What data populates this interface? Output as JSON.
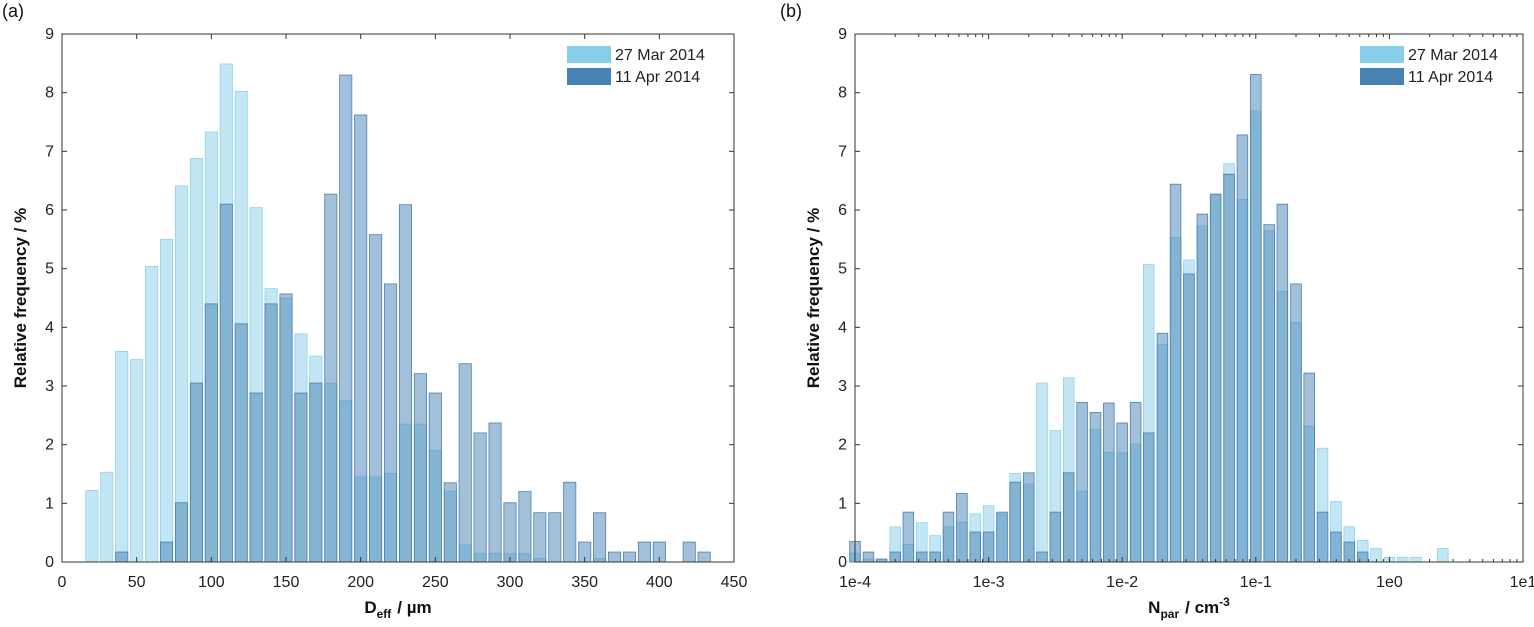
{
  "chart_data": [
    {
      "type": "bar",
      "panel_label": "(a)",
      "xlabel": "D",
      "xlabel_sub": "eff",
      "xlabel_unit": "/ µm",
      "ylabel": "Relative frequency  / %",
      "xlim": [
        0,
        450
      ],
      "ylim": [
        0,
        9
      ],
      "x_ticks": [
        "0",
        "50",
        "100",
        "150",
        "200",
        "250",
        "300",
        "350",
        "400",
        "450"
      ],
      "y_ticks": [
        "0",
        "1",
        "2",
        "3",
        "4",
        "5",
        "6",
        "7",
        "8",
        "9"
      ],
      "bin_width": 10,
      "legend_position": "top-right",
      "series": [
        {
          "name": "27 Mar 2014",
          "color": "#87ceeb",
          "x": [
            20,
            30,
            40,
            50,
            60,
            70,
            80,
            90,
            100,
            110,
            120,
            130,
            140,
            150,
            160,
            170,
            180,
            190,
            200,
            210,
            220,
            230,
            240,
            250,
            260,
            270,
            280,
            290,
            300,
            310,
            320,
            330,
            340,
            350,
            360,
            370,
            380,
            390,
            400,
            410,
            420,
            430
          ],
          "values": [
            1.22,
            1.53,
            3.59,
            3.45,
            5.04,
            5.5,
            6.41,
            6.88,
            7.33,
            8.49,
            8.02,
            6.04,
            4.66,
            4.5,
            3.89,
            3.51,
            3.05,
            2.75,
            1.45,
            1.45,
            1.51,
            2.35,
            2.35,
            1.9,
            1.21,
            0.29,
            0.14,
            0.15,
            0.14,
            0.14,
            0.06,
            0,
            0,
            0,
            0.06,
            0,
            0,
            0,
            0,
            0,
            0,
            0
          ]
        },
        {
          "name": "11 Apr 2014",
          "color": "#4682b4",
          "x": [
            20,
            30,
            40,
            50,
            60,
            70,
            80,
            90,
            100,
            110,
            120,
            130,
            140,
            150,
            160,
            170,
            180,
            190,
            200,
            210,
            220,
            230,
            240,
            250,
            260,
            270,
            280,
            290,
            300,
            310,
            320,
            330,
            340,
            350,
            360,
            370,
            380,
            390,
            400,
            410,
            420,
            430
          ],
          "values": [
            0,
            0,
            0.17,
            0,
            0,
            0.34,
            1.01,
            3.05,
            4.4,
            6.1,
            4.06,
            2.88,
            4.4,
            4.57,
            2.88,
            3.05,
            6.27,
            8.3,
            7.62,
            5.58,
            4.74,
            6.09,
            3.21,
            2.88,
            1.35,
            3.38,
            2.2,
            2.37,
            1.01,
            1.2,
            0.84,
            0.84,
            1.36,
            0.34,
            0.84,
            0.17,
            0.17,
            0.34,
            0.34,
            0,
            0.34,
            0.17
          ]
        }
      ]
    },
    {
      "type": "bar",
      "panel_label": "(b)",
      "xlabel": "N",
      "xlabel_sub": "par",
      "xlabel_unit": "/ cm",
      "xlabel_sup": "-3",
      "ylabel": "Relative frequency  / %",
      "xscale": "log",
      "xlim": [
        0.0001,
        10
      ],
      "ylim": [
        0,
        9
      ],
      "x_ticks": [
        "1e-4",
        "1e-3",
        "1e-2",
        "1e-1",
        "1e0",
        "1e1"
      ],
      "y_ticks": [
        "0",
        "1",
        "2",
        "3",
        "4",
        "5",
        "6",
        "7",
        "8",
        "9"
      ],
      "bins_per_decade": 10,
      "legend_position": "top-right",
      "series": [
        {
          "name": "27 Mar 2014",
          "color": "#87ceeb",
          "x": [
            0.0001,
            0.000126,
            0.000158,
            0.0002,
            0.000251,
            0.000316,
            0.000398,
            0.000501,
            0.000631,
            0.000794,
            0.001,
            0.00126,
            0.00158,
            0.002,
            0.00251,
            0.00316,
            0.00398,
            0.00501,
            0.00631,
            0.00794,
            0.01,
            0.0126,
            0.0158,
            0.02,
            0.0251,
            0.0316,
            0.0398,
            0.0501,
            0.0631,
            0.0794,
            0.1,
            0.126,
            0.158,
            0.2,
            0.251,
            0.316,
            0.398,
            0.501,
            0.631,
            0.794,
            1,
            1.26,
            1.58,
            2,
            2.51
          ],
          "values": [
            0.15,
            0.05,
            0.05,
            0.6,
            0.3,
            0.67,
            0.45,
            0.6,
            0.68,
            0.82,
            0.96,
            0.82,
            1.51,
            1.33,
            3.05,
            2.24,
            3.14,
            1.21,
            2.26,
            1.87,
            1.86,
            2.01,
            5.07,
            3.71,
            5.53,
            5.15,
            5.73,
            6.27,
            6.79,
            6.18,
            7.69,
            5.65,
            4.61,
            4.08,
            2.32,
            1.94,
            1.03,
            0.6,
            0.37,
            0.23,
            0.08,
            0.08,
            0.08,
            0,
            0.23
          ]
        },
        {
          "name": "11 Apr 2014",
          "color": "#4682b4",
          "x": [
            0.0001,
            0.000126,
            0.000158,
            0.0002,
            0.000251,
            0.000316,
            0.000398,
            0.000501,
            0.000631,
            0.000794,
            0.001,
            0.00126,
            0.00158,
            0.002,
            0.00251,
            0.00316,
            0.00398,
            0.00501,
            0.00631,
            0.00794,
            0.01,
            0.0126,
            0.0158,
            0.02,
            0.0251,
            0.0316,
            0.0398,
            0.0501,
            0.0631,
            0.0794,
            0.1,
            0.126,
            0.158,
            0.2,
            0.251,
            0.316,
            0.398,
            0.501,
            0.631,
            0.794,
            1,
            1.26,
            1.58,
            2,
            2.51
          ],
          "values": [
            0.35,
            0.17,
            0.05,
            0.17,
            0.85,
            0.17,
            0.17,
            0.85,
            1.17,
            0.51,
            0.51,
            0.85,
            1.36,
            1.52,
            0.17,
            0.85,
            1.52,
            2.72,
            2.55,
            2.71,
            2.37,
            2.72,
            2.2,
            3.9,
            6.44,
            4.91,
            5.93,
            6.27,
            6.61,
            7.28,
            8.31,
            5.75,
            6.1,
            4.74,
            3.22,
            0.85,
            0.51,
            0.34,
            0.17,
            0,
            0,
            0,
            0,
            0,
            0
          ]
        }
      ]
    }
  ]
}
